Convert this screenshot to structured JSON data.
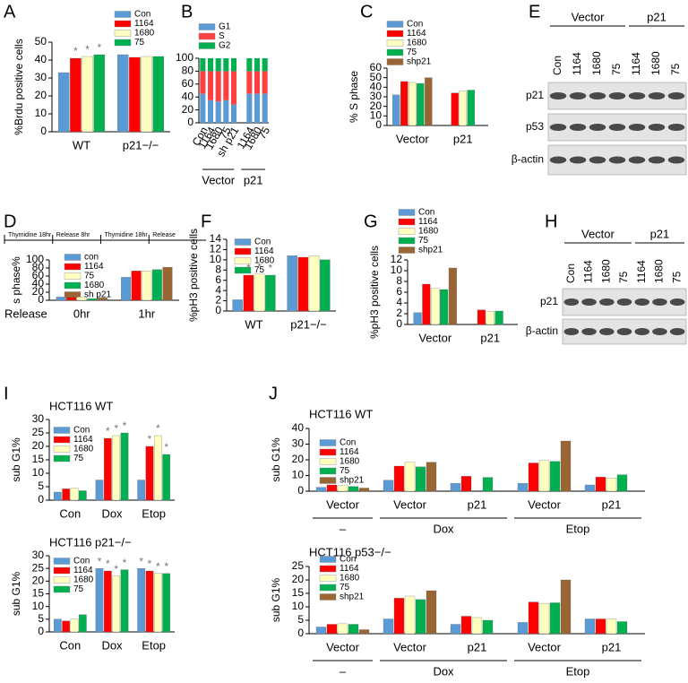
{
  "chart_data": [
    {
      "type": "bar",
      "panel": "A",
      "ylabel": "%Brdu positive cells",
      "categories": [
        "WT",
        "p21−/−"
      ],
      "ylim": [
        0,
        50
      ],
      "yticks": [
        0,
        10,
        20,
        30,
        40,
        50
      ],
      "series": [
        {
          "name": "Con",
          "color": "#5b9bd5",
          "values": [
            33,
            43
          ]
        },
        {
          "name": "1164",
          "color": "#ff0000",
          "values": [
            41,
            41.5
          ],
          "stars": [
            "*",
            null
          ]
        },
        {
          "name": "1680",
          "color": "#ffffc0",
          "values": [
            42,
            42
          ],
          "stars": [
            "*",
            null
          ]
        },
        {
          "name": "75",
          "color": "#00b050",
          "values": [
            43,
            42
          ],
          "stars": [
            "*",
            null
          ]
        }
      ]
    },
    {
      "type": "stacked_bar",
      "panel": "B",
      "categories": [
        "Con",
        "1164",
        "1680",
        "75",
        "sh p21",
        null,
        "1164",
        "1680",
        "75"
      ],
      "ylim": [
        0,
        100
      ],
      "yticks": [
        0,
        20,
        40,
        60,
        80,
        100
      ],
      "groups": [
        {
          "name": "Vector",
          "count": 5
        },
        {
          "name": "p21",
          "count": 4
        }
      ],
      "series": [
        {
          "name": "G1",
          "color": "#5b9bd5",
          "values": [
            45,
            35,
            33,
            35,
            28,
            null,
            45,
            45,
            45
          ]
        },
        {
          "name": "S",
          "color": "#ff4040",
          "values": [
            35,
            45,
            47,
            45,
            52,
            null,
            35,
            35,
            35
          ]
        },
        {
          "name": "G2",
          "color": "#00b050",
          "values": [
            20,
            20,
            20,
            20,
            20,
            null,
            20,
            20,
            20
          ]
        }
      ]
    },
    {
      "type": "bar",
      "panel": "C",
      "ylabel": "% S phase",
      "categories": [
        "Vector",
        "p21"
      ],
      "ylim": [
        0,
        60
      ],
      "yticks": [
        0,
        10,
        20,
        30,
        40,
        50,
        60
      ],
      "series": [
        {
          "name": "Con",
          "color": "#5b9bd5",
          "values": [
            32,
            null
          ]
        },
        {
          "name": "1164",
          "color": "#ff0000",
          "values": [
            46,
            34
          ]
        },
        {
          "name": "1680",
          "color": "#ffffc0",
          "values": [
            45,
            36
          ]
        },
        {
          "name": "75",
          "color": "#00b050",
          "values": [
            44,
            37
          ]
        },
        {
          "name": "shp21",
          "color": "#996633",
          "values": [
            50,
            null
          ]
        }
      ]
    },
    {
      "type": "bar",
      "panel": "D",
      "ylabel": "s phase%",
      "xlabel": "Release",
      "timeline": [
        "Thymidine 18hr",
        "Release 8hr",
        "Thymidine 18hr",
        "Release"
      ],
      "categories": [
        "0hr",
        "1hr"
      ],
      "ylim": [
        0,
        100
      ],
      "yticks": [
        0,
        20,
        40,
        60,
        80,
        100
      ],
      "series": [
        {
          "name": "con",
          "color": "#5b9bd5",
          "values": [
            8,
            57
          ]
        },
        {
          "name": "1164",
          "color": "#ff0000",
          "values": [
            7,
            73
          ]
        },
        {
          "name": "75",
          "color": "#ffffc0",
          "values": [
            8,
            72
          ]
        },
        {
          "name": "1680",
          "color": "#00b050",
          "values": [
            4,
            76
          ]
        },
        {
          "name": "sh p21",
          "color": "#996633",
          "values": [
            6,
            82
          ]
        }
      ]
    },
    {
      "type": "bar",
      "panel": "F",
      "ylabel": "%pH3 positive cells",
      "categories": [
        "WT",
        "p21−/−"
      ],
      "ylim": [
        0,
        14
      ],
      "yticks": [
        0,
        2,
        4,
        6,
        8,
        10,
        12,
        14
      ],
      "series": [
        {
          "name": "Con",
          "color": "#5b9bd5",
          "values": [
            2.2,
            10.8
          ]
        },
        {
          "name": "1164",
          "color": "#ff0000",
          "values": [
            7,
            10.5
          ],
          "stars": [
            "*",
            null
          ]
        },
        {
          "name": "1680",
          "color": "#ffffc0",
          "values": [
            7.2,
            10.8
          ],
          "stars": [
            "*",
            null
          ]
        },
        {
          "name": "75",
          "color": "#00b050",
          "values": [
            7,
            10
          ],
          "stars": [
            "*",
            null
          ]
        }
      ]
    },
    {
      "type": "bar",
      "panel": "G",
      "ylabel": "%pH3 positive cells",
      "categories": [
        "Vector",
        "p21"
      ],
      "ylim": [
        0,
        12
      ],
      "yticks": [
        0,
        2,
        4,
        6,
        8,
        10,
        12
      ],
      "series": [
        {
          "name": "Con",
          "color": "#5b9bd5",
          "values": [
            2.2,
            null
          ]
        },
        {
          "name": "1164",
          "color": "#ff0000",
          "values": [
            7.5,
            2.7
          ]
        },
        {
          "name": "1680",
          "color": "#ffffc0",
          "values": [
            6.7,
            2.4
          ]
        },
        {
          "name": "75",
          "color": "#00b050",
          "values": [
            6.5,
            2.5
          ]
        },
        {
          "name": "shp21",
          "color": "#996633",
          "values": [
            10.5,
            null
          ]
        }
      ]
    },
    {
      "type": "bar",
      "panel": "I",
      "title": "HCT116 WT",
      "ylabel": "sub G1%",
      "categories": [
        "Con",
        "Dox",
        "Etop"
      ],
      "ylim": [
        0,
        30
      ],
      "yticks": [
        0,
        5,
        10,
        15,
        20,
        25,
        30
      ],
      "series": [
        {
          "name": "Con",
          "color": "#5b9bd5",
          "values": [
            3,
            7.5,
            7.5
          ]
        },
        {
          "name": "1164",
          "color": "#ff0000",
          "values": [
            4.2,
            23,
            20
          ],
          "stars": [
            null,
            "*",
            "*"
          ]
        },
        {
          "name": "1680",
          "color": "#ffffc0",
          "values": [
            4.5,
            24,
            24
          ],
          "stars": [
            null,
            "*",
            "*"
          ]
        },
        {
          "name": "75",
          "color": "#00b050",
          "values": [
            3.5,
            25,
            17
          ],
          "stars": [
            null,
            "*",
            "*"
          ]
        }
      ]
    },
    {
      "type": "bar",
      "title": "HCT116 p21−/−",
      "ylabel": "sub G1%",
      "categories": [
        "Con",
        "Dox",
        "Etop"
      ],
      "ylim": [
        0,
        30
      ],
      "yticks": [
        0,
        5,
        10,
        15,
        20,
        25,
        30
      ],
      "series": [
        {
          "name": "Con",
          "color": "#5b9bd5",
          "values": [
            5,
            25,
            25
          ],
          "stars": [
            null,
            "*",
            "*"
          ]
        },
        {
          "name": "1164",
          "color": "#ff0000",
          "values": [
            4.3,
            24,
            24
          ],
          "stars": [
            null,
            "*",
            "*"
          ]
        },
        {
          "name": "1680",
          "color": "#ffffc0",
          "values": [
            5,
            22,
            23
          ],
          "stars": [
            null,
            "*",
            "*"
          ]
        },
        {
          "name": "75",
          "color": "#00b050",
          "values": [
            6.8,
            24.5,
            23
          ],
          "stars": [
            null,
            "*",
            "*"
          ]
        }
      ]
    },
    {
      "type": "bar",
      "panel": "J",
      "title": "HCT116 WT",
      "ylabel": "sub G1%",
      "categories": [
        "Vector",
        "Vector",
        "p21",
        "Vector",
        "p21"
      ],
      "ylim": [
        0,
        40
      ],
      "yticks": [
        0,
        10,
        20,
        30,
        40
      ],
      "groups": [
        {
          "name": "–",
          "count": 1
        },
        {
          "name": "Dox",
          "count": 2
        },
        {
          "name": "Etop",
          "count": 2
        }
      ],
      "series": [
        {
          "name": "Con",
          "color": "#5b9bd5",
          "values": [
            2.5,
            7,
            5,
            5,
            4
          ]
        },
        {
          "name": "1164",
          "color": "#ff0000",
          "values": [
            4,
            16,
            9.5,
            18,
            9
          ]
        },
        {
          "name": "1680",
          "color": "#ffffc0",
          "values": [
            3.5,
            18.5,
            null,
            19.5,
            8.5
          ]
        },
        {
          "name": "75",
          "color": "#00b050",
          "values": [
            3,
            15.5,
            8.8,
            19,
            10.5
          ]
        },
        {
          "name": "shp21",
          "color": "#996633",
          "values": [
            2,
            18.5,
            null,
            32,
            null
          ]
        }
      ]
    },
    {
      "type": "bar",
      "title": "HCT116 p53−/−",
      "ylabel": "sub G1%",
      "categories": [
        "Vector",
        "Vector",
        "p21",
        "Vector",
        "p21"
      ],
      "ylim": [
        0,
        25
      ],
      "yticks": [
        0,
        5,
        10,
        15,
        20,
        25
      ],
      "groups": [
        {
          "name": "–",
          "count": 1
        },
        {
          "name": "Dox",
          "count": 2
        },
        {
          "name": "Etop",
          "count": 2
        }
      ],
      "series": [
        {
          "name": "Con",
          "color": "#5b9bd5",
          "values": [
            2.5,
            5.5,
            3.5,
            4.2,
            5.5
          ]
        },
        {
          "name": "1164",
          "color": "#ff0000",
          "values": [
            3.5,
            13.2,
            6.5,
            11.8,
            5.5
          ]
        },
        {
          "name": "1680",
          "color": "#ffffc0",
          "values": [
            3.7,
            14,
            6,
            11.3,
            5.5
          ]
        },
        {
          "name": "75",
          "color": "#00b050",
          "values": [
            3.5,
            12.7,
            5,
            11.5,
            4.5
          ]
        },
        {
          "name": "shp21",
          "color": "#996633",
          "values": [
            1.5,
            16,
            null,
            20,
            null
          ]
        }
      ]
    }
  ],
  "blots": [
    {
      "panel": "E",
      "groups": [
        {
          "name": "Vector",
          "count": 4
        },
        {
          "name": "p21",
          "count": 3
        }
      ],
      "lanes": [
        "Con",
        "1164",
        "1680",
        "75",
        "1164",
        "1680",
        "75"
      ],
      "rows": [
        "p21",
        "p53",
        "β-actin"
      ]
    },
    {
      "panel": "H",
      "groups": [
        {
          "name": "Vector",
          "count": 4
        },
        {
          "name": "p21",
          "count": 3
        }
      ],
      "lanes": [
        "Con",
        "1164",
        "1680",
        "75",
        "1164",
        "1680",
        "75"
      ],
      "rows": [
        "p21",
        "β-actin"
      ]
    }
  ]
}
